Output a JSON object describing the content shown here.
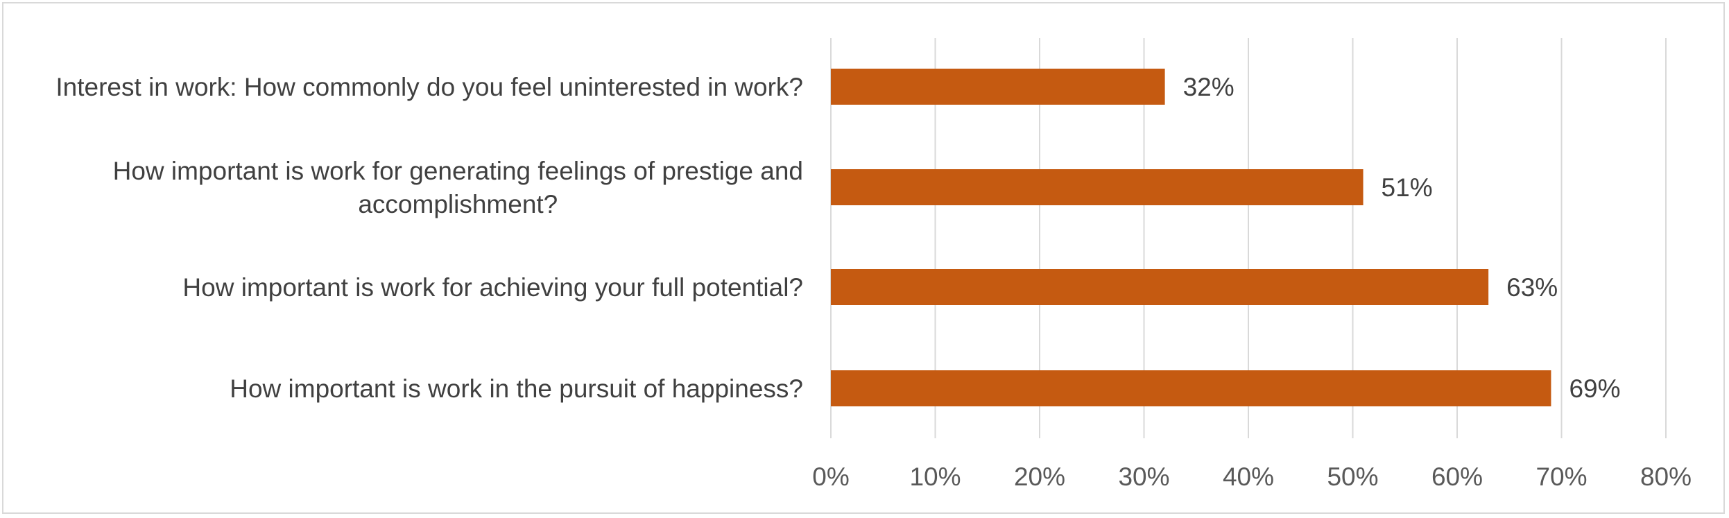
{
  "chart_data": {
    "type": "bar",
    "orientation": "horizontal",
    "categories": [
      [
        "Interest in work: How commonly do you feel uninterested in work?"
      ],
      [
        "How important is work for generating feelings of prestige and",
        "accomplishment?"
      ],
      [
        "How important is work for achieving your full potential?"
      ],
      [
        "How important is work in the pursuit of happiness?"
      ]
    ],
    "values": [
      32,
      51,
      63,
      69
    ],
    "data_labels": [
      "32%",
      "51%",
      "63%",
      "69%"
    ],
    "xlim": [
      0,
      80
    ],
    "x_ticks": [
      0,
      10,
      20,
      30,
      40,
      50,
      60,
      70,
      80
    ],
    "x_tick_labels": [
      "0%",
      "10%",
      "20%",
      "30%",
      "40%",
      "50%",
      "60%",
      "70%",
      "80%"
    ],
    "bar_color": "#c55a11",
    "gridlines": true,
    "grid_color": "#d9d9d9",
    "legend": false,
    "title": "",
    "xlabel": "",
    "ylabel": ""
  }
}
